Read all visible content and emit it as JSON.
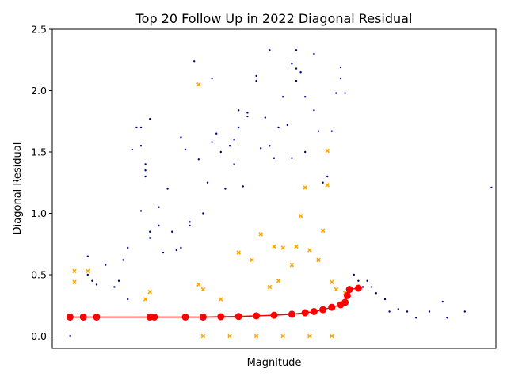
{
  "chart_data": {
    "type": "scatter",
    "title": "Top 20 Follow Up in 2022 Diagonal Residual",
    "xlabel": "Magnitude",
    "ylabel": "Diagonal Residual",
    "ylim": [
      -0.1,
      2.5
    ],
    "xlim": [
      0,
      100
    ],
    "yticks": [
      "0.0",
      "0.5",
      "1.0",
      "1.5",
      "2.0",
      "2.5"
    ],
    "ytick_values": [
      0.0,
      0.5,
      1.0,
      1.5,
      2.0,
      2.5
    ],
    "grid": false,
    "colors": {
      "all": "#00008b",
      "top": "#ffa500",
      "trend": "#ff0000"
    },
    "series": [
      {
        "role": "all",
        "marker": "dot",
        "points": [
          [
            4,
            0.0
          ],
          [
            8,
            0.65
          ],
          [
            8,
            0.5
          ],
          [
            9,
            0.45
          ],
          [
            10,
            0.42
          ],
          [
            12,
            0.58
          ],
          [
            14,
            0.4
          ],
          [
            15,
            0.45
          ],
          [
            16,
            0.62
          ],
          [
            17,
            0.72
          ],
          [
            17,
            0.3
          ],
          [
            18,
            1.52
          ],
          [
            19,
            1.7
          ],
          [
            20,
            1.7
          ],
          [
            20,
            1.55
          ],
          [
            20,
            1.02
          ],
          [
            21,
            1.3
          ],
          [
            21,
            1.35
          ],
          [
            21,
            1.4
          ],
          [
            22,
            1.77
          ],
          [
            22,
            0.85
          ],
          [
            22,
            0.8
          ],
          [
            24,
            0.9
          ],
          [
            24,
            1.05
          ],
          [
            25,
            0.68
          ],
          [
            26,
            1.2
          ],
          [
            27,
            0.85
          ],
          [
            28,
            0.7
          ],
          [
            29,
            0.72
          ],
          [
            29,
            1.62
          ],
          [
            30,
            1.52
          ],
          [
            31,
            0.9
          ],
          [
            31,
            0.93
          ],
          [
            32,
            2.24
          ],
          [
            33,
            1.44
          ],
          [
            34,
            1.0
          ],
          [
            35,
            1.25
          ],
          [
            36,
            1.58
          ],
          [
            36,
            2.1
          ],
          [
            37,
            1.65
          ],
          [
            38,
            1.5
          ],
          [
            39,
            1.2
          ],
          [
            40,
            1.55
          ],
          [
            41,
            1.6
          ],
          [
            41,
            1.4
          ],
          [
            42,
            1.7
          ],
          [
            42,
            1.84
          ],
          [
            43,
            1.22
          ],
          [
            44,
            1.82
          ],
          [
            44,
            1.79
          ],
          [
            46,
            2.12
          ],
          [
            46,
            2.08
          ],
          [
            47,
            1.53
          ],
          [
            48,
            1.78
          ],
          [
            49,
            2.33
          ],
          [
            49,
            1.55
          ],
          [
            50,
            1.45
          ],
          [
            51,
            1.7
          ],
          [
            52,
            1.95
          ],
          [
            53,
            1.72
          ],
          [
            54,
            2.22
          ],
          [
            54,
            1.45
          ],
          [
            55,
            2.33
          ],
          [
            55,
            2.18
          ],
          [
            55,
            2.08
          ],
          [
            56,
            2.15
          ],
          [
            57,
            1.95
          ],
          [
            57,
            1.5
          ],
          [
            59,
            2.3
          ],
          [
            59,
            1.84
          ],
          [
            60,
            1.67
          ],
          [
            61,
            1.25
          ],
          [
            62,
            1.3
          ],
          [
            63,
            1.67
          ],
          [
            64,
            1.98
          ],
          [
            65,
            2.19
          ],
          [
            65,
            2.1
          ],
          [
            66,
            1.98
          ],
          [
            68,
            0.5
          ],
          [
            69,
            0.45
          ],
          [
            70,
            0.4
          ],
          [
            71,
            0.45
          ],
          [
            72,
            0.4
          ],
          [
            73,
            0.35
          ],
          [
            75,
            0.3
          ],
          [
            76,
            0.2
          ],
          [
            78,
            0.22
          ],
          [
            80,
            0.2
          ],
          [
            82,
            0.15
          ],
          [
            85,
            0.2
          ],
          [
            88,
            0.28
          ],
          [
            89,
            0.15
          ],
          [
            93,
            0.2
          ],
          [
            99,
            1.21
          ]
        ]
      },
      {
        "role": "top",
        "marker": "x",
        "points": [
          [
            5,
            0.53
          ],
          [
            5,
            0.44
          ],
          [
            8,
            0.53
          ],
          [
            21,
            0.3
          ],
          [
            22,
            0.36
          ],
          [
            33,
            2.05
          ],
          [
            33,
            0.42
          ],
          [
            34,
            0.38
          ],
          [
            38,
            0.3
          ],
          [
            42,
            0.68
          ],
          [
            45,
            0.62
          ],
          [
            47,
            0.83
          ],
          [
            49,
            0.4
          ],
          [
            50,
            0.73
          ],
          [
            51,
            0.45
          ],
          [
            52,
            0.72
          ],
          [
            54,
            0.58
          ],
          [
            55,
            0.73
          ],
          [
            56,
            0.98
          ],
          [
            57,
            1.21
          ],
          [
            58,
            0.7
          ],
          [
            60,
            0.62
          ],
          [
            61,
            0.86
          ],
          [
            62,
            1.51
          ],
          [
            62,
            1.23
          ],
          [
            63,
            0.44
          ],
          [
            64,
            0.38
          ],
          [
            66,
            0.35
          ],
          [
            34,
            0.0
          ],
          [
            40,
            0.0
          ],
          [
            46,
            0.0
          ],
          [
            52,
            0.0
          ],
          [
            58,
            0.0
          ],
          [
            63,
            0.0
          ]
        ]
      },
      {
        "role": "trend",
        "marker": "circle",
        "points": [
          [
            4,
            0.155
          ],
          [
            7,
            0.155
          ],
          [
            10,
            0.155
          ],
          [
            22,
            0.155
          ],
          [
            23,
            0.155
          ],
          [
            30,
            0.155
          ],
          [
            34,
            0.155
          ],
          [
            38,
            0.158
          ],
          [
            42,
            0.16
          ],
          [
            46,
            0.165
          ],
          [
            50,
            0.17
          ],
          [
            54,
            0.178
          ],
          [
            57,
            0.19
          ],
          [
            59,
            0.2
          ],
          [
            61,
            0.215
          ],
          [
            63,
            0.235
          ],
          [
            65,
            0.255
          ],
          [
            66,
            0.275
          ],
          [
            66.5,
            0.33
          ],
          [
            67,
            0.38
          ],
          [
            69,
            0.39
          ]
        ]
      }
    ]
  }
}
